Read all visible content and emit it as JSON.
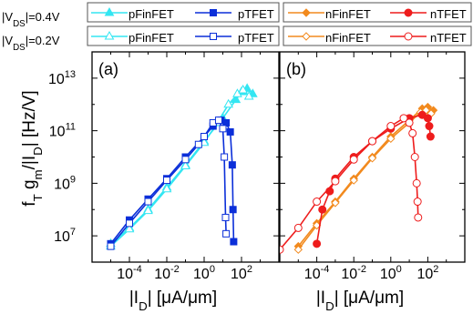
{
  "legend": {
    "row1_condition": "|V_DS|=0.4V",
    "row2_condition": "|V_DS|=0.2V",
    "entries": [
      "pFinFET",
      "pTFET",
      "nFinFET",
      "nTFET"
    ]
  },
  "colors": {
    "pFinFET": "#33e6f2",
    "pTFET": "#0b2fd9",
    "nFinFET": "#f28a1e",
    "nTFET": "#ee1c1c"
  },
  "chart_data": [
    {
      "type": "line",
      "panel_label": "(a)",
      "xlabel": "|I_D| [μA/μm]",
      "ylabel": "f_T g_m/|I_D| [Hz/V]",
      "x_scale": "log",
      "y_scale": "log",
      "xlim": [
        1e-06,
        10000.0
      ],
      "ylim": [
        1000000.0,
        100000000000000.0
      ],
      "x_ticks": [
        -4,
        -2,
        0,
        2
      ],
      "y_ticks": [
        7,
        9,
        11,
        13
      ],
      "grid": false,
      "series": [
        {
          "name": "pFinFET",
          "vds": "0.4V",
          "marker": "triangle",
          "filled": true,
          "x": [
            1e-05,
            0.0001,
            0.001,
            0.01,
            0.1,
            1,
            10,
            50,
            100,
            200,
            400
          ],
          "y": [
            5000000.0,
            20000000.0,
            100000000.0,
            700000000.0,
            5000000000.0,
            40000000000.0,
            300000000000.0,
            1500000000000.0,
            3000000000000.0,
            4000000000000.0,
            2500000000000.0
          ]
        },
        {
          "name": "pFinFET",
          "vds": "0.2V",
          "marker": "triangle",
          "filled": false,
          "x": [
            1e-05,
            0.0001,
            0.001,
            0.01,
            0.1,
            1,
            5,
            20,
            60,
            120,
            250
          ],
          "y": [
            4000000.0,
            18000000.0,
            90000000.0,
            600000000.0,
            4500000000.0,
            35000000000.0,
            200000000000.0,
            1000000000000.0,
            2500000000000.0,
            3500000000000.0,
            2000000000000.0
          ]
        },
        {
          "name": "pTFET",
          "vds": "0.4V",
          "marker": "square",
          "filled": true,
          "x": [
            1e-05,
            0.0001,
            0.001,
            0.01,
            0.1,
            1,
            3,
            8,
            15,
            25,
            32,
            35,
            38
          ],
          "y": [
            5000000.0,
            40000000.0,
            250000000.0,
            1500000000.0,
            10000000000.0,
            60000000000.0,
            150000000000.0,
            250000000000.0,
            200000000000.0,
            90000000000.0,
            5000000000.0,
            100000000.0,
            6000000.0
          ]
        },
        {
          "name": "pTFET",
          "vds": "0.2V",
          "marker": "square",
          "filled": false,
          "x": [
            1e-05,
            0.0001,
            0.001,
            0.01,
            0.1,
            0.5,
            1,
            3,
            6,
            10,
            12,
            14,
            15
          ],
          "y": [
            4000000.0,
            30000000.0,
            200000000.0,
            1300000000.0,
            8000000000.0,
            30000000000.0,
            60000000000.0,
            200000000000.0,
            250000000000.0,
            120000000000.0,
            10000000000.0,
            50000000.0,
            12000000.0
          ]
        }
      ]
    },
    {
      "type": "line",
      "panel_label": "(b)",
      "xlabel": "|I_D| [μA/μm]",
      "ylabel": "",
      "x_scale": "log",
      "y_scale": "log",
      "xlim": [
        1e-06,
        10000.0
      ],
      "ylim": [
        1000000.0,
        100000000000000.0
      ],
      "x_ticks": [
        -4,
        -2,
        0,
        2
      ],
      "y_ticks": [
        7,
        9,
        11,
        13
      ],
      "grid": false,
      "series": [
        {
          "name": "nFinFET",
          "vds": "0.4V",
          "marker": "diamond",
          "filled": true,
          "x": [
            1e-05,
            0.0001,
            0.001,
            0.01,
            0.1,
            1,
            10,
            50,
            100,
            200
          ],
          "y": [
            4000000.0,
            30000000.0,
            200000000.0,
            1500000000.0,
            10000000000.0,
            60000000000.0,
            250000000000.0,
            700000000000.0,
            800000000000.0,
            600000000000.0
          ]
        },
        {
          "name": "nFinFET",
          "vds": "0.2V",
          "marker": "diamond",
          "filled": false,
          "x": [
            1e-05,
            0.0001,
            0.001,
            0.01,
            0.1,
            1,
            10,
            40,
            80,
            150
          ],
          "y": [
            3000000.0,
            25000000.0,
            180000000.0,
            1300000000.0,
            9000000000.0,
            50000000000.0,
            200000000000.0,
            500000000000.0,
            600000000000.0,
            450000000000.0
          ]
        },
        {
          "name": "nTFET",
          "vds": "0.4V",
          "marker": "circle",
          "filled": true,
          "x": [
            0.0001,
            0.0002,
            0.0005,
            0.001,
            0.01,
            0.1,
            1,
            10,
            50,
            100,
            120,
            140
          ],
          "y": [
            5000000.0,
            100000000.0,
            500000000.0,
            1500000000.0,
            10000000000.0,
            40000000000.0,
            120000000000.0,
            300000000000.0,
            400000000000.0,
            300000000000.0,
            150000000000.0,
            60000000000.0
          ]
        },
        {
          "name": "nTFET",
          "vds": "0.2V",
          "marker": "circle",
          "filled": false,
          "x": [
            1e-06,
            1e-05,
            0.0001,
            0.001,
            0.01,
            0.1,
            1,
            5,
            10,
            15,
            20,
            25,
            28,
            30
          ],
          "y": [
            3000000.0,
            20000000.0,
            200000000.0,
            1200000000.0,
            8000000000.0,
            40000000000.0,
            150000000000.0,
            300000000000.0,
            200000000000.0,
            80000000000.0,
            10000000000.0,
            1000000000.0,
            200000000.0,
            50000000.0
          ]
        }
      ]
    }
  ]
}
